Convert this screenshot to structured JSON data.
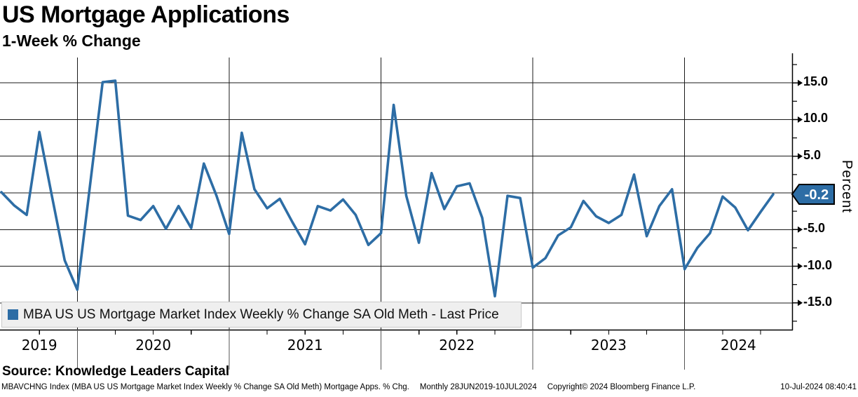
{
  "header": {
    "title": "US Mortgage Applications",
    "subtitle": "1-Week % Change"
  },
  "chart_data": {
    "type": "line",
    "title": "US Mortgage Applications",
    "subtitle": "1-Week % Change",
    "grid": true,
    "legend_position": "bottom-left",
    "x_frequency": "Monthly",
    "x_start": "28JUN2019",
    "x_end": "10JUL2024",
    "x_year_labels": [
      "2019",
      "2020",
      "2021",
      "2022",
      "2023",
      "2024"
    ],
    "y_axis": {
      "label": "Percent",
      "major_ticks": [
        15,
        10,
        5,
        0,
        -5,
        -10,
        -15
      ],
      "tick_labels": [
        "15.0",
        "10.0",
        "5.0",
        "",
        "-5.0",
        "-10.0",
        "-15.0"
      ],
      "minor_ticks": [
        17.5,
        12.5,
        7.5,
        2.5,
        -2.5,
        -7.5,
        -12.5,
        -17.5
      ],
      "ylim": [
        -18.7,
        18.9
      ]
    },
    "series": [
      {
        "name": "MBA US US Mortgage Market Index Weekly % Change SA Old Meth - Last Price",
        "color": "#2d6da5",
        "last_price": -0.2,
        "values": [
          0.1,
          -1.7,
          -3.0,
          8.3,
          -0.5,
          -9.2,
          -13.2,
          1.0,
          15.1,
          15.3,
          -3.1,
          -3.7,
          -1.8,
          -4.9,
          -1.8,
          -4.8,
          4.0,
          -0.4,
          -5.6,
          8.2,
          0.5,
          -2.1,
          -0.8,
          -4.0,
          -7.0,
          -1.8,
          -2.4,
          -0.9,
          -3.0,
          -7.1,
          -5.5,
          12.0,
          -0.4,
          -6.8,
          2.7,
          -2.2,
          0.9,
          1.3,
          -3.4,
          -14.1,
          -0.4,
          -0.7,
          -10.2,
          -8.9,
          -5.8,
          -4.7,
          -1.1,
          -3.2,
          -4.1,
          -3.0,
          2.5,
          -5.9,
          -1.8,
          0.5,
          -10.4,
          -7.5,
          -5.5,
          -0.5,
          -2.0,
          -5.1,
          -2.6,
          -0.2
        ]
      }
    ]
  },
  "legend": {
    "label": "MBA US US Mortgage Market Index Weekly % Change SA Old Meth - Last Price",
    "marker_color": "#2d6da5"
  },
  "badge": {
    "text": "-0.2",
    "color": "#2d6da5"
  },
  "source": {
    "text": "Source: Knowledge Leaders Capital"
  },
  "footer": {
    "left": "MBAVCHNG Index (MBA US US Mortgage Market Index Weekly % Change SA Old Meth) Mortgage Apps. % Chg.",
    "range": "Monthly 28JUN2019-10JUL2024",
    "copyright": "Copyright© 2024 Bloomberg Finance L.P.",
    "datetime": "10-Jul-2024 08:40:41"
  }
}
